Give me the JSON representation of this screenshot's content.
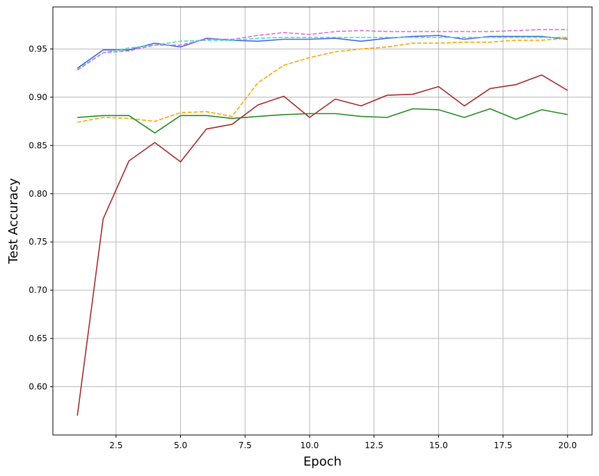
{
  "chart_data": {
    "type": "line",
    "title": "",
    "xlabel": "Epoch",
    "ylabel": "Test Accuracy",
    "xlim": [
      0.05,
      20.95
    ],
    "ylim": [
      0.55,
      0.9935
    ],
    "xticks": [
      2.5,
      5.0,
      7.5,
      10.0,
      12.5,
      15.0,
      17.5,
      20.0
    ],
    "xtick_labels": [
      "2.5",
      "5.0",
      "7.5",
      "10.0",
      "12.5",
      "15.0",
      "17.5",
      "20.0"
    ],
    "yticks": [
      0.6,
      0.65,
      0.7,
      0.75,
      0.8,
      0.85,
      0.9,
      0.95
    ],
    "ytick_labels": [
      "0.60",
      "0.65",
      "0.70",
      "0.75",
      "0.80",
      "0.85",
      "0.90",
      "0.95"
    ],
    "grid": true,
    "x": [
      1,
      2,
      3,
      4,
      5,
      6,
      7,
      8,
      9,
      10,
      11,
      12,
      13,
      14,
      15,
      16,
      17,
      18,
      19,
      20
    ],
    "series": [
      {
        "color": "#4169e1",
        "dash": "solid",
        "values": [
          0.93,
          0.949,
          0.949,
          0.956,
          0.952,
          0.961,
          0.959,
          0.958,
          0.96,
          0.96,
          0.961,
          0.958,
          0.961,
          0.963,
          0.964,
          0.96,
          0.963,
          0.963,
          0.963,
          0.96
        ]
      },
      {
        "color": "#40e0d0",
        "dash": "dashed",
        "values": [
          0.929,
          0.946,
          0.951,
          0.954,
          0.958,
          0.959,
          0.959,
          0.961,
          0.962,
          0.962,
          0.962,
          0.962,
          0.962,
          0.962,
          0.962,
          0.962,
          0.962,
          0.962,
          0.962,
          0.962
        ]
      },
      {
        "color": "#da70d6",
        "dash": "dashed",
        "values": [
          0.928,
          0.946,
          0.948,
          0.954,
          0.954,
          0.96,
          0.96,
          0.964,
          0.967,
          0.965,
          0.968,
          0.969,
          0.968,
          0.968,
          0.968,
          0.968,
          0.968,
          0.969,
          0.97,
          0.97
        ]
      },
      {
        "color": "#ffa500",
        "dash": "dashed",
        "values": [
          0.874,
          0.879,
          0.878,
          0.875,
          0.884,
          0.885,
          0.88,
          0.915,
          0.933,
          0.941,
          0.947,
          0.95,
          0.952,
          0.956,
          0.956,
          0.957,
          0.957,
          0.959,
          0.959,
          0.961
        ]
      },
      {
        "color": "#a52a2a",
        "dash": "solid",
        "values": [
          0.57,
          0.774,
          0.834,
          0.853,
          0.833,
          0.867,
          0.872,
          0.892,
          0.901,
          0.879,
          0.898,
          0.891,
          0.902,
          0.903,
          0.911,
          0.891,
          0.909,
          0.913,
          0.923,
          0.907
        ]
      },
      {
        "color": "#228b22",
        "dash": "solid",
        "values": [
          0.879,
          0.881,
          0.881,
          0.863,
          0.881,
          0.881,
          0.878,
          0.88,
          0.882,
          0.883,
          0.883,
          0.88,
          0.879,
          0.888,
          0.887,
          0.879,
          0.888,
          0.877,
          0.887,
          0.882
        ]
      }
    ]
  }
}
